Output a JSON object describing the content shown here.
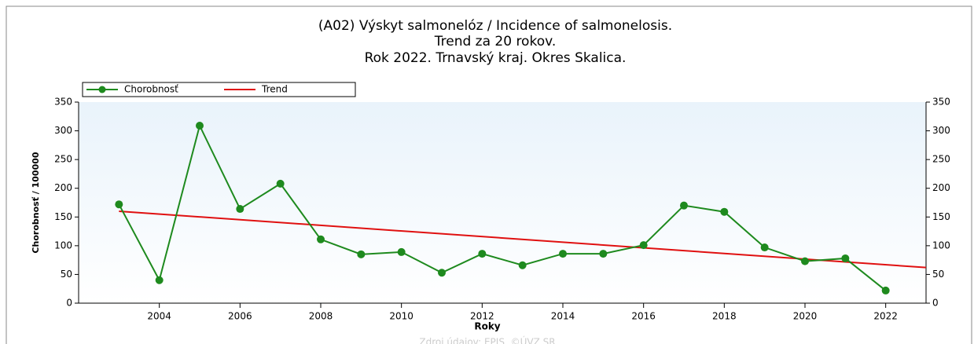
{
  "chart_data": {
    "type": "line",
    "title": [
      "(A02) Výskyt salmonelóz / Incidence of salmonelosis.",
      "Trend za 20 rokov.",
      "Rok 2022. Trnavský kraj. Okres Skalica."
    ],
    "x_label": "Roky",
    "y_label": "Chorobnosť / 100000",
    "source": "Zdroj údajov: EPIS, ©ÚVZ SR",
    "x": [
      2003,
      2004,
      2005,
      2006,
      2007,
      2008,
      2009,
      2010,
      2011,
      2012,
      2013,
      2014,
      2015,
      2016,
      2017,
      2018,
      2019,
      2020,
      2021,
      2022
    ],
    "series": [
      {
        "name": "Chorobnosť",
        "color": "#1e8a1e",
        "marker": true,
        "values": [
          172,
          40,
          309,
          164,
          208,
          111,
          85,
          89,
          53,
          86,
          66,
          86,
          86,
          101,
          170,
          159,
          97,
          73,
          78,
          22
        ]
      },
      {
        "name": "Trend",
        "color": "#e01010",
        "marker": false,
        "x": [
          2003,
          2023
        ],
        "values": [
          160,
          62
        ]
      }
    ],
    "xlim": [
      2002,
      2023
    ],
    "xticks": [
      2004,
      2006,
      2008,
      2010,
      2012,
      2014,
      2016,
      2018,
      2020,
      2022
    ],
    "ylim": [
      0,
      350
    ],
    "yticks": [
      0,
      50,
      100,
      150,
      200,
      250,
      300,
      350
    ],
    "y2lim": [
      0,
      350
    ],
    "y2ticks": [
      0,
      50,
      100,
      150,
      200,
      250,
      300,
      350
    ],
    "legend": "top-left"
  }
}
